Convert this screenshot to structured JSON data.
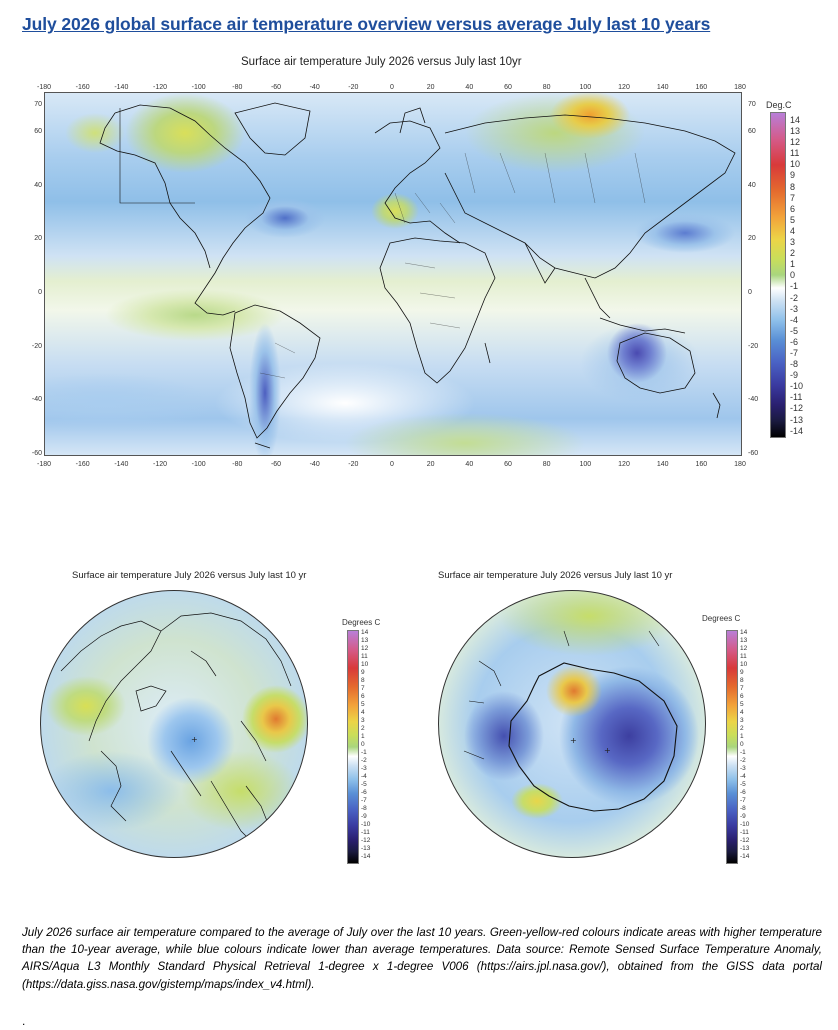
{
  "page_title": "July 2026 global surface air temperature overview versus average July last 10 years",
  "world_map": {
    "title": "Surface air temperature July 2026 versus July last 10yr",
    "x_ticks": [
      "-180",
      "-160",
      "-140",
      "-120",
      "-100",
      "-80",
      "-60",
      "-40",
      "-20",
      "0",
      "20",
      "40",
      "60",
      "80",
      "100",
      "120",
      "140",
      "160",
      "180"
    ],
    "y_ticks": [
      "70",
      "60",
      "40",
      "20",
      "0",
      "-20",
      "-40",
      "-60"
    ],
    "colorbar_title": "Deg.C",
    "colorbar_ticks": [
      "14",
      "13",
      "12",
      "11",
      "10",
      "9",
      "8",
      "7",
      "6",
      "5",
      "4",
      "3",
      "2",
      "1",
      "0",
      "-1",
      "-2",
      "-3",
      "-4",
      "-5",
      "-6",
      "-7",
      "-8",
      "-9",
      "-10",
      "-11",
      "-12",
      "-13",
      "-14"
    ]
  },
  "north_polar_map": {
    "title": "Surface air temperature July 2026 versus July last 10 yr",
    "colorbar_title": "Degrees C",
    "colorbar_ticks": [
      "14",
      "13",
      "12",
      "11",
      "10",
      "9",
      "8",
      "7",
      "6",
      "5",
      "4",
      "3",
      "2",
      "1",
      "0",
      "-1",
      "-2",
      "-3",
      "-4",
      "-5",
      "-6",
      "-7",
      "-8",
      "-9",
      "-10",
      "-11",
      "-12",
      "-13",
      "-14"
    ]
  },
  "south_polar_map": {
    "title": "Surface air temperature July 2026 versus July last 10 yr",
    "colorbar_title": "Degrees C",
    "colorbar_ticks": [
      "14",
      "13",
      "12",
      "11",
      "10",
      "9",
      "8",
      "7",
      "6",
      "5",
      "4",
      "3",
      "2",
      "1",
      "0",
      "-1",
      "-2",
      "-3",
      "-4",
      "-5",
      "-6",
      "-7",
      "-8",
      "-9",
      "-10",
      "-11",
      "-12",
      "-13",
      "-14"
    ]
  },
  "colors": {
    "title_blue": "#1f4e9c",
    "warm": "#e07a30",
    "cold": "#3d3fa0"
  },
  "caption": "July 2026 surface air temperature compared to the average of July over the last 10 years. Green-yellow-red colours indicate areas with higher temperature than the 10-year average, while blue colours indicate lower than average temperatures. Data source: Remote Sensed Surface Temperature Anomaly, AIRS/Aqua L3 Monthly Standard Physical Retrieval 1-degree x 1-degree V006 (https://airs.jpl.nasa.gov/), obtained from the GISS data portal (https://data.giss.nasa.gov/gistemp/maps/index_v4.html).",
  "trailing_mark": "."
}
